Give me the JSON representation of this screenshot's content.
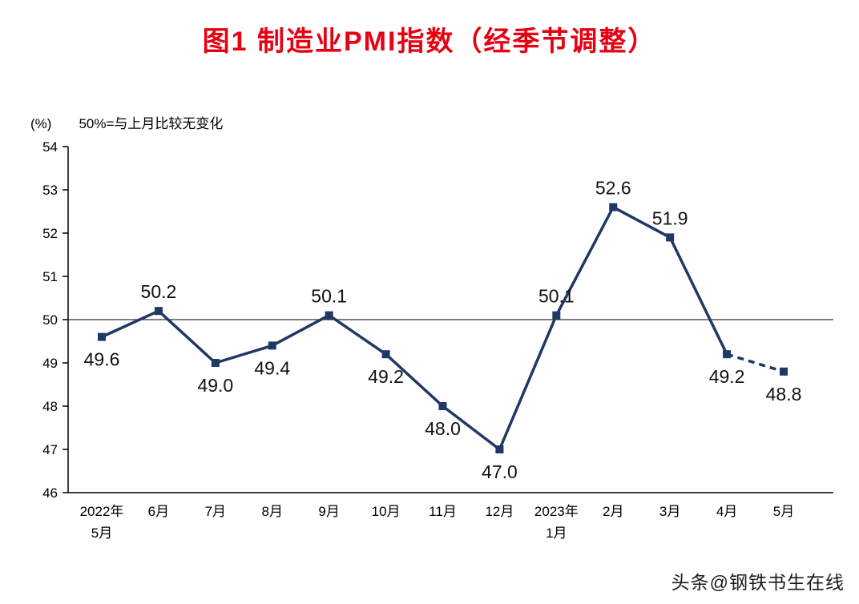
{
  "title": "图1 制造业PMI指数（经季节调整）",
  "unit_label": "(%)",
  "note": "50%=与上月比较无变化",
  "watermark": "头条@钢铁书生在线",
  "chart_data": {
    "type": "line",
    "title": "图1 制造业PMI指数（经季节调整）",
    "ylabel": "(%)",
    "categories": [
      [
        "2022年",
        "5月"
      ],
      [
        "6月"
      ],
      [
        "7月"
      ],
      [
        "8月"
      ],
      [
        "9月"
      ],
      [
        "10月"
      ],
      [
        "11月"
      ],
      [
        "12月"
      ],
      [
        "2023年",
        "1月"
      ],
      [
        "2月"
      ],
      [
        "3月"
      ],
      [
        "4月"
      ],
      [
        "5月"
      ]
    ],
    "values": [
      49.6,
      50.2,
      49.0,
      49.4,
      50.1,
      49.2,
      48.0,
      47.0,
      50.1,
      52.6,
      51.9,
      49.2,
      48.8
    ],
    "ylim": [
      46,
      54
    ],
    "ytick_step": 1,
    "reference_line": 50,
    "grid": false,
    "legend": "none",
    "line_color": "#1f3864",
    "marker": "square",
    "data_labels": true,
    "label_rule": "above if value >= 50 else below",
    "last_segment_dashed": true
  }
}
